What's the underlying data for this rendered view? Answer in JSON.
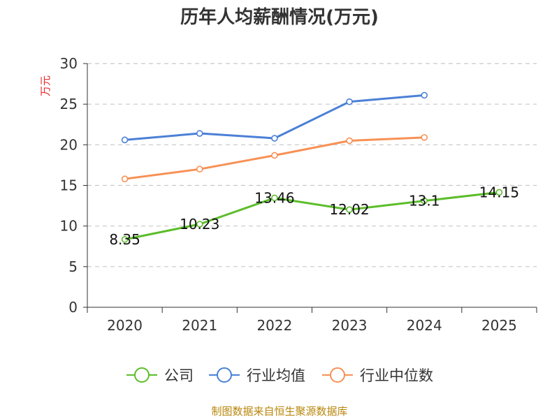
{
  "title": "历年人均薪酬情况(万元)",
  "source": "制图数据来自恒生聚源数据库",
  "chart_data": {
    "type": "line",
    "title": "历年人均薪酬情况(万元)",
    "ylabel": "万元",
    "xlabel": "",
    "ylim": [
      0,
      30
    ],
    "yticks": [
      0,
      5,
      10,
      15,
      20,
      25,
      30
    ],
    "grid": true,
    "legend_position": "bottom",
    "categories": [
      "2020",
      "2021",
      "2022",
      "2023",
      "2024",
      "2025"
    ],
    "series": [
      {
        "name": "公司",
        "color": "#5cbd2a",
        "values": [
          8.35,
          10.23,
          13.46,
          12.02,
          13.1,
          14.15
        ],
        "data_labels": [
          "8.35",
          "10.23",
          "13.46",
          "12.02",
          "13.1",
          "14.15"
        ]
      },
      {
        "name": "行业均值",
        "color": "#4b80d6",
        "values": [
          20.6,
          21.4,
          20.8,
          25.3,
          26.1,
          null
        ]
      },
      {
        "name": "行业中位数",
        "color": "#f79155",
        "values": [
          15.8,
          17.0,
          18.7,
          20.5,
          20.9,
          null
        ]
      }
    ]
  }
}
